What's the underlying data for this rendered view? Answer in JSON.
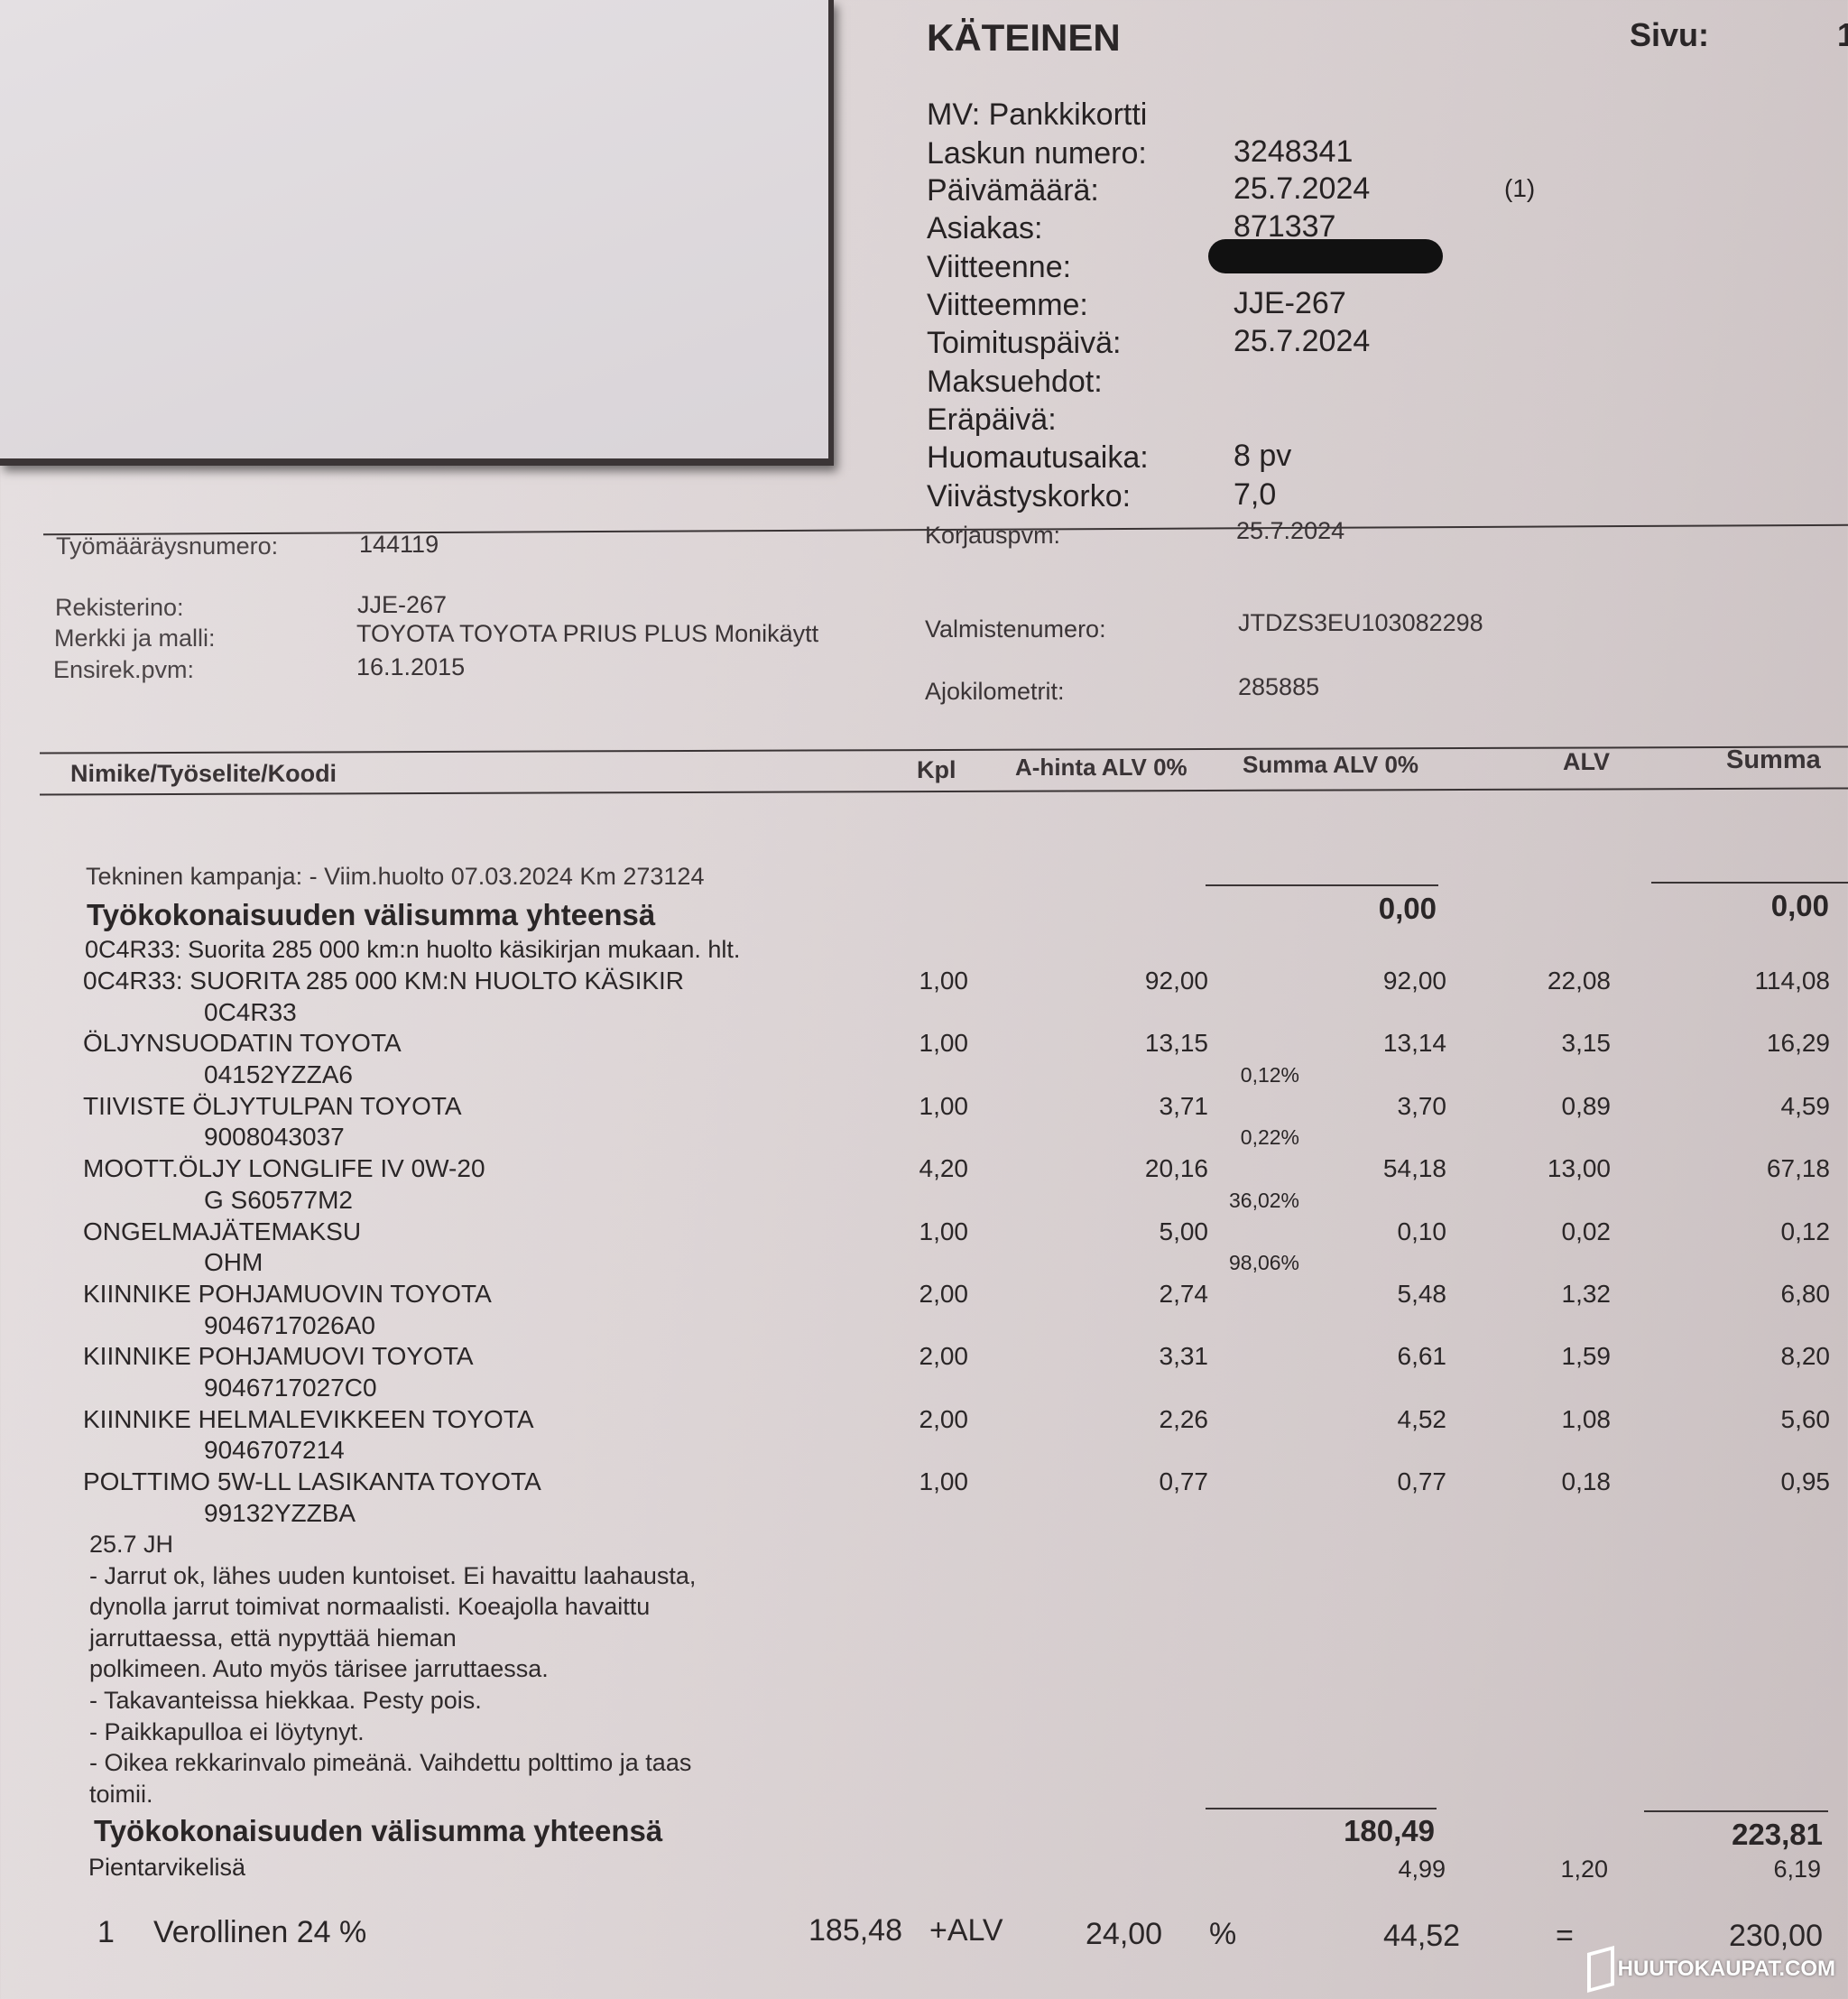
{
  "header": {
    "payment_type": "KÄTEINEN",
    "page_label": "Sivu:",
    "page_number": "1",
    "fields": [
      {
        "label": "MV: Pankkikortti",
        "value": ""
      },
      {
        "label": "Laskun numero:",
        "value": "3248341"
      },
      {
        "label": "Päivämäärä:",
        "value": "25.7.2024"
      },
      {
        "label": "Asiakas:",
        "value": "871337"
      },
      {
        "label": "Viitteenne:",
        "value": ""
      },
      {
        "label": "Viitteemme:",
        "value": "JJE-267"
      },
      {
        "label": "Toimituspäivä:",
        "value": "25.7.2024"
      },
      {
        "label": "Maksuehdot:",
        "value": ""
      },
      {
        "label": "Eräpäivä:",
        "value": ""
      },
      {
        "label": "Huomautusaika:",
        "value": "8 pv"
      },
      {
        "label": "Viivästyskorko:",
        "value": "7,0"
      }
    ],
    "date_note": "(1)"
  },
  "vehicle": {
    "work_order_label": "Työmääräysnumero:",
    "work_order": "144119",
    "repair_date_label": "Korjauspvm:",
    "repair_date": "25.7.2024",
    "reg_label": "Rekisterino:",
    "reg": "JJE-267",
    "model_label": "Merkki ja malli:",
    "model": "TOYOTA TOYOTA PRIUS PLUS Monikäytt",
    "first_reg_label": "Ensirek.pvm:",
    "first_reg": "16.1.2015",
    "vin_label": "Valmistenumero:",
    "vin": "JTDZS3EU103082298",
    "km_label": "Ajokilometrit:",
    "km": "285885"
  },
  "table": {
    "headers": {
      "item": "Nimike/Työselite/Koodi",
      "qty": "Kpl",
      "unit_price": "A-hinta ALV 0%",
      "sum_net": "Summa ALV 0%",
      "vat": "ALV",
      "sum": "Summa"
    },
    "campaign": "Tekninen kampanja: - Viim.huolto 07.03.2024 Km 273124",
    "subtotal1": {
      "label": "Työkokonaisuuden välisumma yhteensä",
      "net": "0,00",
      "sum": "0,00"
    },
    "job_desc": "0C4R33: Suorita 285 000 km:n huolto käsikirjan mukaan. hlt.",
    "items": [
      {
        "name": "0C4R33: SUORITA 285 000 KM:N HUOLTO KÄSIKIR",
        "code": "0C4R33",
        "qty": "1,00",
        "price": "92,00",
        "sum_net": "92,00",
        "vat": "22,08",
        "sum": "114,08",
        "pct": ""
      },
      {
        "name": "ÖLJYNSUODATIN TOYOTA",
        "code": "04152YZZA6",
        "qty": "1,00",
        "price": "13,15",
        "sum_net": "13,14",
        "vat": "3,15",
        "sum": "16,29",
        "pct": "0,12%"
      },
      {
        "name": "TIIVISTE ÖLJYTULPAN  TOYOTA",
        "code": "9008043037",
        "qty": "1,00",
        "price": "3,71",
        "sum_net": "3,70",
        "vat": "0,89",
        "sum": "4,59",
        "pct": "0,22%"
      },
      {
        "name": "MOOTT.ÖLJY LONGLIFE IV 0W-20",
        "code": "G  S60577M2",
        "qty": "4,20",
        "price": "20,16",
        "sum_net": "54,18",
        "vat": "13,00",
        "sum": "67,18",
        "pct": "36,02%"
      },
      {
        "name": "ONGELMAJÄTEMAKSU",
        "code": "OHM",
        "qty": "1,00",
        "price": "5,00",
        "sum_net": "0,10",
        "vat": "0,02",
        "sum": "0,12",
        "pct": "98,06%"
      },
      {
        "name": "KIINNIKE POHJAMUOVIN TOYOTA",
        "code": "9046717026A0",
        "qty": "2,00",
        "price": "2,74",
        "sum_net": "5,48",
        "vat": "1,32",
        "sum": "6,80",
        "pct": ""
      },
      {
        "name": "KIINNIKE  POHJAMUOVI  TOYOTA",
        "code": "9046717027C0",
        "qty": "2,00",
        "price": "3,31",
        "sum_net": "6,61",
        "vat": "1,59",
        "sum": "8,20",
        "pct": ""
      },
      {
        "name": "KIINNIKE HELMALEVIKKEEN  TOYOTA",
        "code": "9046707214",
        "qty": "2,00",
        "price": "2,26",
        "sum_net": "4,52",
        "vat": "1,08",
        "sum": "5,60",
        "pct": ""
      },
      {
        "name": "POLTTIMO 5W-LL LASIKANTA TOYOTA",
        "code": "99132YZZBA",
        "qty": "1,00",
        "price": "0,77",
        "sum_net": "0,77",
        "vat": "0,18",
        "sum": "0,95",
        "pct": ""
      }
    ],
    "notes": [
      "25.7 JH",
      "- Jarrut ok, lähes uuden kuntoiset. Ei havaittu laahausta,",
      "dynolla jarrut toimivat normaalisti. Koeajolla havaittu",
      "jarruttaessa, että nypyttää hieman",
      "polkimeen. Auto myös tärisee jarruttaessa.",
      "- Takavanteissa hiekkaa. Pesty pois.",
      "- Paikkapulloa ei löytynyt.",
      "- Oikea rekkarinvalo pimeänä. Vaihdettu polttimo ja taas",
      "toimii."
    ],
    "subtotal2": {
      "label": "Työkokonaisuuden välisumma yhteensä",
      "net": "180,49",
      "sum": "223,81"
    },
    "small_supplies": {
      "label": "Pientarvikelisä",
      "net": "4,99",
      "vat": "1,20",
      "sum": "6,19"
    }
  },
  "totals": {
    "index": "1",
    "label": "Verollinen 24 %",
    "net": "185,48",
    "plus_vat": "+ALV",
    "rate": "24,00",
    "percent": "%",
    "vat": "44,52",
    "equals": "=",
    "total": "230,00"
  },
  "watermark": "HUUTOKAUPAT.COM",
  "colors": {
    "paper": "#ddd5d6",
    "ink": "#2a2627",
    "redaction": "#111111"
  }
}
